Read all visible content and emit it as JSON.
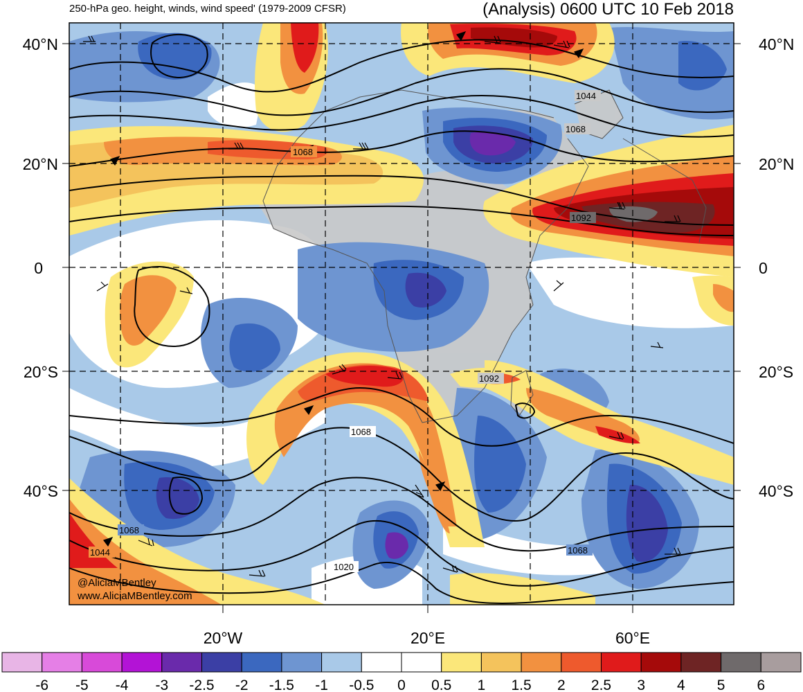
{
  "header": {
    "product": "250-hPa geo. height, winds, wind speed' (1979-2009 CFSR)",
    "valid": "(Analysis) 0600 UTC 10 Feb 2018"
  },
  "map": {
    "lat_labels": [
      "40°N",
      "20°N",
      "0",
      "20°S",
      "40°S"
    ],
    "lon_labels": [
      "20°W",
      "20°E",
      "60°E"
    ],
    "contour_labels": [
      "1068",
      "1044",
      "1068",
      "1092",
      "1092",
      "1068",
      "1068",
      "1044",
      "1020",
      "1068"
    ],
    "credit": [
      "@AliciaMBentley",
      "www.AliciaMBentley.com"
    ]
  },
  "colorbar": {
    "ticks": [
      "-6",
      "-5",
      "-4",
      "-3",
      "-2.5",
      "-2",
      "-1.5",
      "-1",
      "-0.5",
      "0",
      "0.5",
      "1",
      "1.5",
      "2",
      "2.5",
      "3",
      "4",
      "5",
      "6"
    ],
    "colors": [
      "#e8b5e6",
      "#e57fe6",
      "#d84ad9",
      "#b313d6",
      "#6a2aab",
      "#3b3fa5",
      "#3b68bf",
      "#6e95d1",
      "#a9c9e8",
      "#ffffff",
      "#ffffff",
      "#fbe77a",
      "#f4c35c",
      "#f29140",
      "#ee5a2d",
      "#e01b1b",
      "#a50a0a",
      "#6e2424",
      "#6f6a6b",
      "#a89d9e"
    ]
  }
}
